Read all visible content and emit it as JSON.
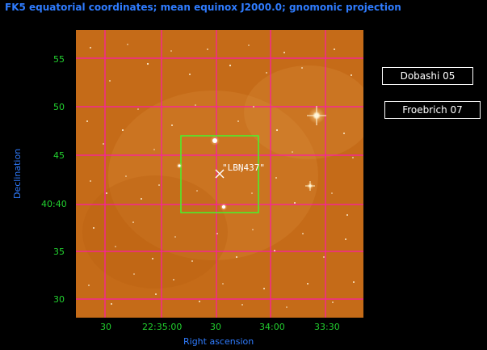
{
  "title": "FK5 equatorial coordinates; mean equinox J2000.0; gnomonic projection",
  "axes": {
    "x_label": "Right ascension",
    "y_label": "Declination",
    "x_ticks": [
      "30",
      "22:35:00",
      "30",
      "34:00",
      "33:30"
    ],
    "y_ticks": [
      "55",
      "50",
      "45",
      "40:40",
      "35",
      "30"
    ]
  },
  "object_label": "\"LBN437\"",
  "legend": {
    "box1": "Dobashi 05",
    "box2": "Froebrich 07"
  },
  "colors": {
    "title": "#2f7cff",
    "tick_text": "#22d12f",
    "grid": "#ff1aa8",
    "box": "#3cff2d",
    "marker": "#ffffff",
    "background": "#000000"
  }
}
